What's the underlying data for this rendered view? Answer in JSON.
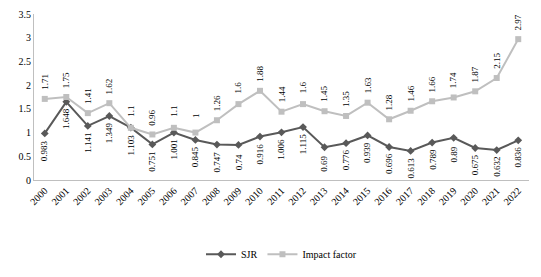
{
  "chart_data": {
    "type": "line",
    "categories": [
      "2000",
      "2001",
      "2002",
      "2003",
      "2004",
      "2005",
      "2006",
      "2007",
      "2008",
      "2009",
      "2010",
      "2011",
      "2012",
      "2013",
      "2014",
      "2015",
      "2016",
      "2017",
      "2018",
      "2019",
      "2020",
      "2021",
      "2022"
    ],
    "series": [
      {
        "name": "SJR",
        "color": "#595959",
        "marker": "diamond",
        "line_style": "solid",
        "values": [
          0.983,
          1.648,
          1.141,
          1.349,
          1.103,
          0.751,
          1.001,
          0.845,
          0.747,
          0.74,
          0.916,
          1.006,
          1.115,
          0.69,
          0.776,
          0.939,
          0.696,
          0.613,
          0.789,
          0.89,
          0.675,
          0.632,
          0.836
        ]
      },
      {
        "name": "Impact factor",
        "color": "#bfbfbf",
        "marker": "square",
        "line_style": "solid",
        "values": [
          1.71,
          1.75,
          1.41,
          1.62,
          1.1,
          0.96,
          1.1,
          1,
          1.26,
          1.6,
          1.88,
          1.44,
          1.6,
          1.45,
          1.35,
          1.63,
          1.28,
          1.46,
          1.66,
          1.74,
          1.87,
          2.15,
          2.97
        ]
      }
    ],
    "ylim": [
      0,
      3.5
    ],
    "yticks": [
      0,
      0.5,
      1,
      1.5,
      2,
      2.5,
      3,
      3.5
    ],
    "grid": false,
    "legend": "bottom",
    "data_labels": true
  }
}
